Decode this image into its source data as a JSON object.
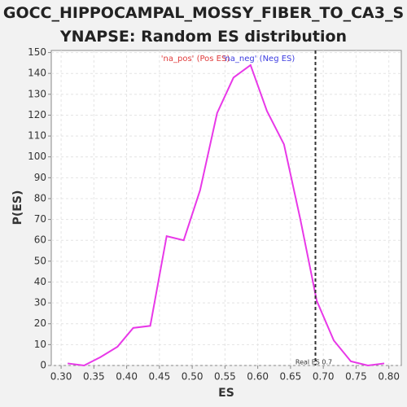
{
  "chart_data": {
    "type": "line",
    "title": "GOCC_HIPPOCAMPAL_MOSSY_FIBER_TO_CA3_SYNAPSE: Random ES distribution",
    "x_label": "ES",
    "y_label": "P(ES)",
    "legend": [
      {
        "name": "'na_pos' (Pos ES)",
        "color": "#e03c3c"
      },
      {
        "name": "'na_neg' (Neg ES)",
        "color": "#3c3ce0"
      }
    ],
    "x": [
      0.31,
      0.335,
      0.36,
      0.386,
      0.41,
      0.436,
      0.461,
      0.487,
      0.512,
      0.538,
      0.563,
      0.589,
      0.614,
      0.64,
      0.665,
      0.69,
      0.716,
      0.742,
      0.768,
      0.793
    ],
    "series": [
      {
        "color": "#e838e8",
        "values": [
          1,
          0,
          4,
          9,
          18,
          19,
          62,
          60,
          84,
          121,
          138,
          144,
          122,
          106,
          70,
          31,
          12,
          2,
          0,
          1
        ]
      }
    ],
    "real_es": {
      "x": 0.688,
      "label": "Real ES 0.7"
    },
    "xlim": [
      0.285,
      0.819
    ],
    "ylim": [
      0,
      151
    ],
    "xticks": [
      {
        "value": 0.3,
        "label": "0.30"
      },
      {
        "value": 0.35,
        "label": "0.35"
      },
      {
        "value": 0.4,
        "label": "0.40"
      },
      {
        "value": 0.45,
        "label": "0.45"
      },
      {
        "value": 0.5,
        "label": "0.50"
      },
      {
        "value": 0.55,
        "label": "0.55"
      },
      {
        "value": 0.6,
        "label": "0.60"
      },
      {
        "value": 0.65,
        "label": "0.65"
      },
      {
        "value": 0.7,
        "label": "0.70"
      },
      {
        "value": 0.75,
        "label": "0.75"
      },
      {
        "value": 0.8,
        "label": "0.80"
      }
    ],
    "yticks": [
      0,
      10,
      20,
      30,
      40,
      50,
      60,
      70,
      80,
      90,
      100,
      110,
      120,
      130,
      140,
      150
    ],
    "grid": true
  }
}
